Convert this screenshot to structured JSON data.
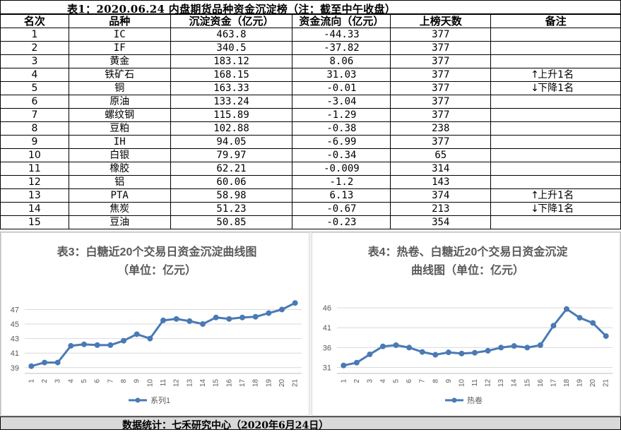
{
  "table": {
    "title": "表1：2020.06.24 内盘期货品种资金沉淀榜（注：截至中午收盘）",
    "headers": [
      "名次",
      "品种",
      "沉淀资金（亿元）",
      "资金流向（亿元）",
      "上榜天数",
      "备注"
    ],
    "rows": [
      {
        "rank": "1",
        "name": "IC",
        "capital": "463.8",
        "flow": "-44.33",
        "days": "377",
        "note_arrow": "",
        "note_text": ""
      },
      {
        "rank": "2",
        "name": "IF",
        "capital": "340.5",
        "flow": "-37.82",
        "days": "377",
        "note_arrow": "",
        "note_text": ""
      },
      {
        "rank": "3",
        "name": "黄金",
        "capital": "183.12",
        "flow": "8.06",
        "days": "377",
        "note_arrow": "",
        "note_text": ""
      },
      {
        "rank": "4",
        "name": "铁矿石",
        "capital": "168.15",
        "flow": "31.03",
        "days": "377",
        "note_arrow": "↑",
        "note_text": "上升1名"
      },
      {
        "rank": "5",
        "name": "铜",
        "capital": "163.33",
        "flow": "-0.01",
        "days": "377",
        "note_arrow": "↓",
        "note_text": "下降1名"
      },
      {
        "rank": "6",
        "name": "原油",
        "capital": "133.24",
        "flow": "-3.04",
        "days": "377",
        "note_arrow": "",
        "note_text": ""
      },
      {
        "rank": "7",
        "name": "螺纹钢",
        "capital": "115.89",
        "flow": "-1.29",
        "days": "377",
        "note_arrow": "",
        "note_text": ""
      },
      {
        "rank": "8",
        "name": "豆粕",
        "capital": "102.88",
        "flow": "-0.38",
        "days": "238",
        "note_arrow": "",
        "note_text": ""
      },
      {
        "rank": "9",
        "name": "IH",
        "capital": "94.05",
        "flow": "-6.99",
        "days": "377",
        "note_arrow": "",
        "note_text": ""
      },
      {
        "rank": "10",
        "name": "白银",
        "capital": "79.97",
        "flow": "-0.34",
        "days": "65",
        "note_arrow": "",
        "note_text": ""
      },
      {
        "rank": "11",
        "name": "橡胶",
        "capital": "62.21",
        "flow": "-0.009",
        "days": "314",
        "note_arrow": "",
        "note_text": ""
      },
      {
        "rank": "12",
        "name": "铝",
        "capital": "60.06",
        "flow": "-1.2",
        "days": "143",
        "note_arrow": "",
        "note_text": ""
      },
      {
        "rank": "13",
        "name": "PTA",
        "capital": "58.98",
        "flow": "6.13",
        "days": "374",
        "note_arrow": "↑",
        "note_text": "上升1名"
      },
      {
        "rank": "14",
        "name": "焦炭",
        "capital": "51.23",
        "flow": "-0.67",
        "days": "213",
        "note_arrow": "↓",
        "note_text": "下降1名"
      },
      {
        "rank": "15",
        "name": "豆油",
        "capital": "50.85",
        "flow": "-0.23",
        "days": "354",
        "note_arrow": "",
        "note_text": ""
      }
    ]
  },
  "chart_data": [
    {
      "type": "line",
      "title": "表3：白糖近20个交易日资金沉淀曲线图",
      "subtitle": "（单位：亿元）",
      "x": [
        "1",
        "2",
        "3",
        "4",
        "5",
        "6",
        "7",
        "8",
        "9",
        "10",
        "11",
        "12",
        "13",
        "14",
        "15",
        "16",
        "17",
        "18",
        "19",
        "20",
        "21"
      ],
      "series": [
        {
          "name": "系列1",
          "values": [
            39.2,
            39.7,
            39.7,
            42.0,
            42.2,
            42.1,
            42.1,
            42.7,
            43.6,
            43.0,
            45.5,
            45.7,
            45.4,
            45.0,
            45.9,
            45.7,
            45.9,
            46.0,
            46.5,
            47.0,
            47.9
          ]
        }
      ],
      "yticks": [
        39,
        41,
        43,
        45,
        47
      ],
      "ylim": [
        38.2,
        48.6
      ],
      "color": "#4a7ab5",
      "legend": "bottom"
    },
    {
      "type": "line",
      "title": "表4：热卷、白糖近20个交易日资金沉淀",
      "subtitle": "曲线图（单位：亿元）",
      "x": [
        "1",
        "2",
        "3",
        "4",
        "5",
        "6",
        "7",
        "8",
        "9",
        "10",
        "11",
        "12",
        "13",
        "14",
        "15",
        "16",
        "17",
        "18",
        "19",
        "20",
        "21"
      ],
      "series": [
        {
          "name": "热卷",
          "values": [
            31.5,
            32.2,
            34.3,
            36.3,
            36.6,
            36.0,
            34.9,
            34.2,
            34.8,
            34.5,
            34.7,
            35.2,
            36.0,
            36.4,
            36.0,
            36.6,
            41.5,
            45.7,
            43.5,
            42.2,
            38.9
          ]
        }
      ],
      "yticks": [
        31,
        36,
        41,
        46
      ],
      "ylim": [
        29.5,
        48.5
      ],
      "color": "#4a7ab5",
      "legend": "bottom"
    }
  ],
  "footer": "数据统计：七禾研究中心（2020年6月24日）"
}
